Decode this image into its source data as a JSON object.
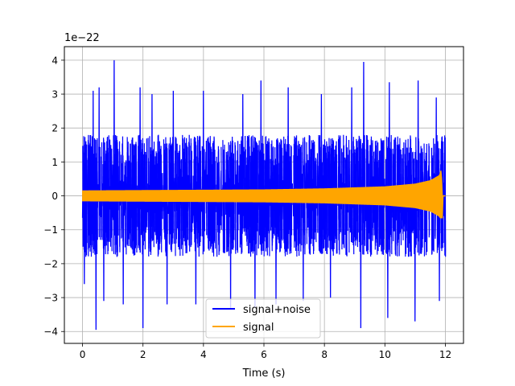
{
  "chart_data": {
    "type": "line",
    "title": "",
    "xlabel": "Time (s)",
    "ylabel": "",
    "y_offset_label": "1e−22",
    "xlim": [
      -0.6,
      12.6
    ],
    "ylim": [
      -4.35,
      4.4
    ],
    "xticks": [
      0,
      2,
      4,
      6,
      8,
      10,
      12
    ],
    "xtick_labels": [
      "0",
      "2",
      "4",
      "6",
      "8",
      "10",
      "12"
    ],
    "yticks": [
      -4,
      -3,
      -2,
      -1,
      0,
      1,
      2,
      3,
      4
    ],
    "ytick_labels": [
      "−4",
      "−3",
      "−2",
      "−1",
      "0",
      "1",
      "2",
      "3",
      "4"
    ],
    "grid": true,
    "legend_position": "bottom-center",
    "series": [
      {
        "name": "signal+noise",
        "color": "#0000ff",
        "x_range": [
          0,
          12
        ],
        "typical_range": [
          -1.8,
          1.9
        ],
        "peaks": [
          {
            "x": 0.06,
            "y": 2.3
          },
          {
            "x": 0.35,
            "y": 3.1
          },
          {
            "x": 0.55,
            "y": 3.2
          },
          {
            "x": 1.05,
            "y": 4.0
          },
          {
            "x": 1.9,
            "y": 3.2
          },
          {
            "x": 2.3,
            "y": 3.0
          },
          {
            "x": 3.0,
            "y": 3.1
          },
          {
            "x": 4.0,
            "y": 3.1
          },
          {
            "x": 5.3,
            "y": 3.0
          },
          {
            "x": 5.9,
            "y": 3.4
          },
          {
            "x": 6.8,
            "y": 3.2
          },
          {
            "x": 7.9,
            "y": 3.0
          },
          {
            "x": 8.9,
            "y": 3.2
          },
          {
            "x": 9.3,
            "y": 3.95
          },
          {
            "x": 10.15,
            "y": 3.35
          },
          {
            "x": 11.1,
            "y": 3.4
          },
          {
            "x": 11.7,
            "y": 2.9
          }
        ],
        "troughs": [
          {
            "x": 0.06,
            "y": -2.6
          },
          {
            "x": 0.45,
            "y": -3.95
          },
          {
            "x": 0.7,
            "y": -3.1
          },
          {
            "x": 1.35,
            "y": -3.2
          },
          {
            "x": 2.0,
            "y": -3.9
          },
          {
            "x": 2.8,
            "y": -3.2
          },
          {
            "x": 3.75,
            "y": -3.2
          },
          {
            "x": 4.9,
            "y": -3.3
          },
          {
            "x": 5.7,
            "y": -3.3
          },
          {
            "x": 6.4,
            "y": -3.2
          },
          {
            "x": 7.3,
            "y": -3.1
          },
          {
            "x": 8.2,
            "y": -3.0
          },
          {
            "x": 9.2,
            "y": -3.9
          },
          {
            "x": 10.1,
            "y": -3.6
          },
          {
            "x": 11.0,
            "y": -3.7
          },
          {
            "x": 11.8,
            "y": -3.1
          }
        ]
      },
      {
        "name": "signal",
        "color": "#ffa500",
        "x_range": [
          0,
          12
        ],
        "envelope": [
          {
            "x": 0,
            "y": 0.15
          },
          {
            "x": 2,
            "y": 0.16
          },
          {
            "x": 4,
            "y": 0.17
          },
          {
            "x": 6,
            "y": 0.18
          },
          {
            "x": 8,
            "y": 0.21
          },
          {
            "x": 10,
            "y": 0.27
          },
          {
            "x": 11,
            "y": 0.35
          },
          {
            "x": 11.5,
            "y": 0.45
          },
          {
            "x": 11.8,
            "y": 0.6
          },
          {
            "x": 11.87,
            "y": 0.78
          },
          {
            "x": 11.9,
            "y": 0.0
          },
          {
            "x": 12,
            "y": 0.0
          }
        ],
        "min_dip": {
          "x": 11.87,
          "y": -0.65
        }
      }
    ]
  }
}
